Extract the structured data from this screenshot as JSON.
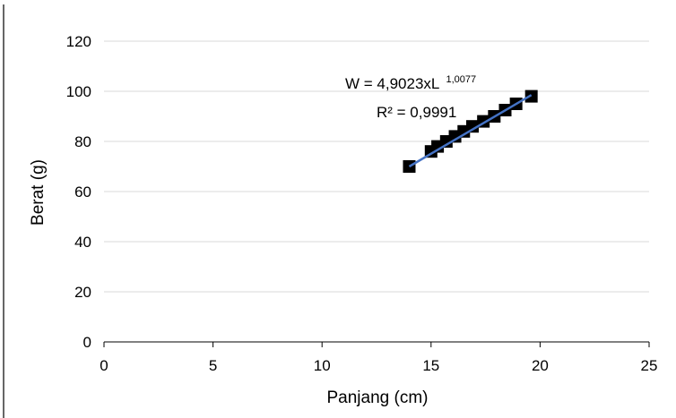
{
  "chart_data": {
    "type": "scatter",
    "xlabel": "Panjang (cm)",
    "ylabel": "Berat (g)",
    "xlim": [
      0,
      25
    ],
    "ylim": [
      0,
      120
    ],
    "x_ticks": [
      0,
      5,
      10,
      15,
      20,
      25
    ],
    "y_ticks": [
      0,
      20,
      40,
      60,
      80,
      100,
      120
    ],
    "grid": "horizontal",
    "series": [
      {
        "points": [
          {
            "x": 14.0,
            "y": 70
          },
          {
            "x": 15.0,
            "y": 76
          },
          {
            "x": 15.3,
            "y": 78
          },
          {
            "x": 15.7,
            "y": 80
          },
          {
            "x": 16.1,
            "y": 82
          },
          {
            "x": 16.5,
            "y": 84
          },
          {
            "x": 16.9,
            "y": 86
          },
          {
            "x": 17.4,
            "y": 88
          },
          {
            "x": 17.9,
            "y": 90
          },
          {
            "x": 18.4,
            "y": 92.5
          },
          {
            "x": 18.9,
            "y": 95
          },
          {
            "x": 19.6,
            "y": 98
          }
        ]
      }
    ],
    "trendline": {
      "x_start": 14.0,
      "y_start": 70,
      "x_end": 19.6,
      "y_end": 98.5,
      "equation_main": "W = 4,9023xL ",
      "equation_exp": "1,0077",
      "r_squared": "R² = 0,9991"
    },
    "colors": {
      "marker": "#000000",
      "trendline": "#4472C4",
      "grid": "#D9D9D9",
      "axis": "#000000",
      "left_border": "#000000"
    }
  }
}
